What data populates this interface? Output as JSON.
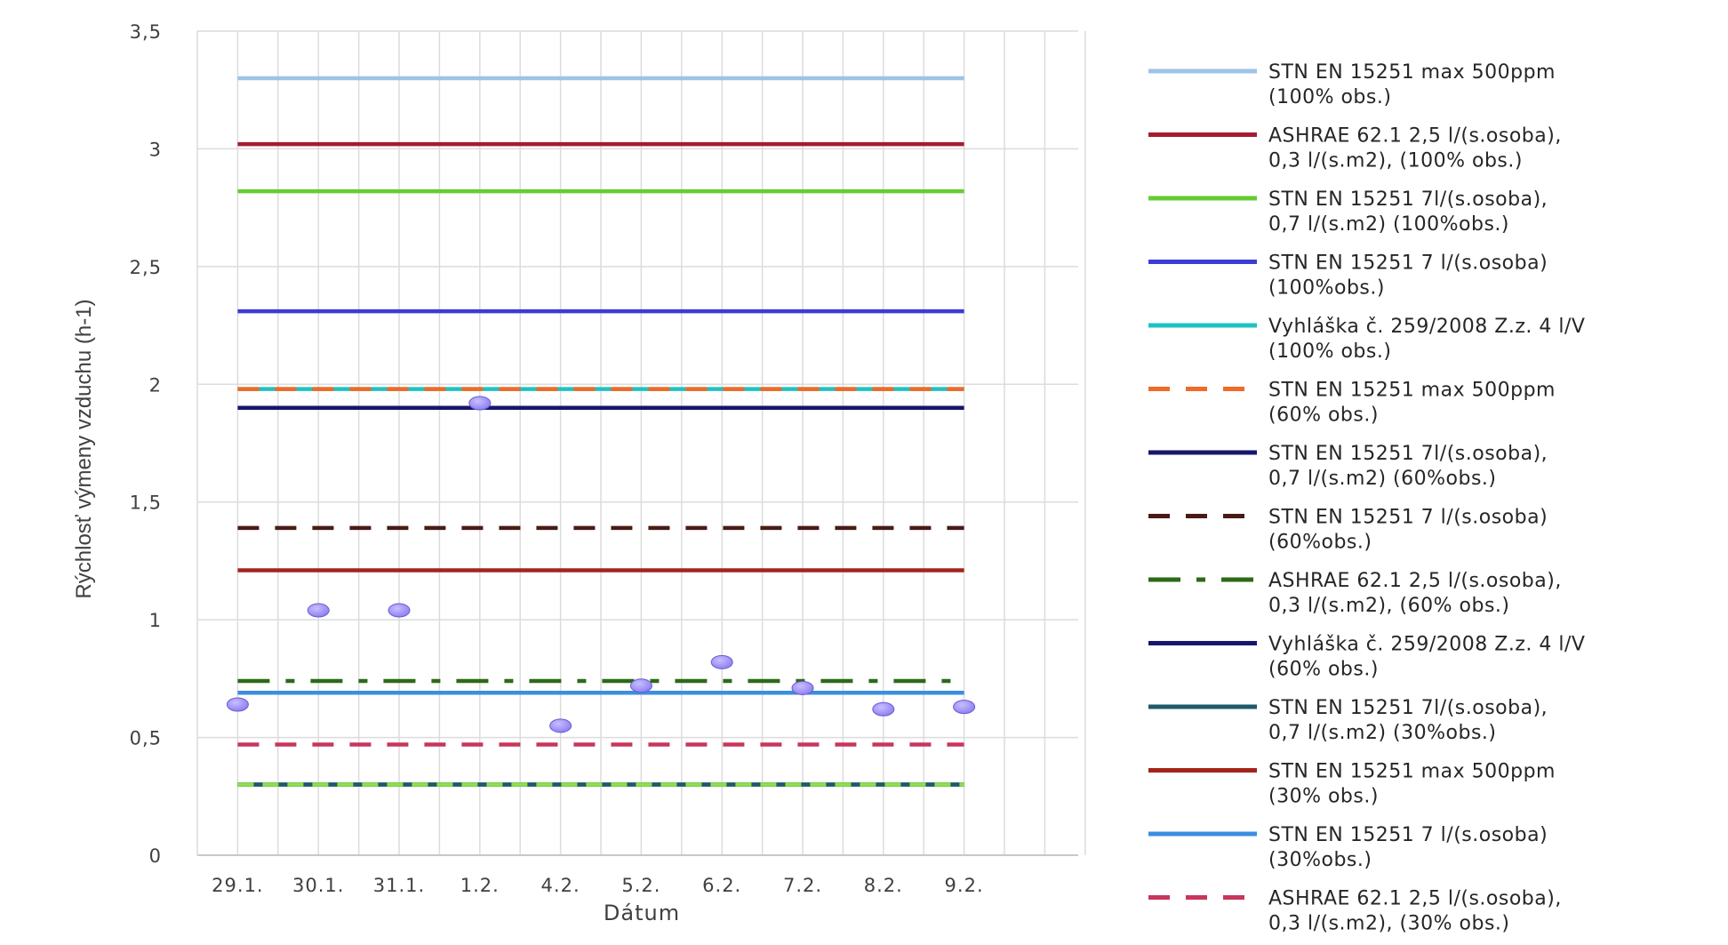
{
  "chart_data": {
    "type": "line",
    "title": "",
    "xlabel": "Dátum",
    "ylabel": "Rýchlosť výmeny vzduchu (h-1)",
    "ylim": [
      0,
      3.5
    ],
    "yticks": [
      "0",
      "0,5",
      "1",
      "1,5",
      "2",
      "2,5",
      "3",
      "3,5"
    ],
    "yticks_values": [
      0,
      0.5,
      1,
      1.5,
      2,
      2.5,
      3,
      3.5
    ],
    "categories": [
      "29.1.",
      "30.1.",
      "31.1.",
      "1.2.",
      "4.2.",
      "5.2.",
      "6.2.",
      "7.2.",
      "8.2.",
      "9.2."
    ],
    "grid": true,
    "legend_position": "right",
    "points_series": {
      "color": "#8a7cf0",
      "values": [
        0.64,
        1.04,
        1.04,
        1.92,
        0.55,
        0.72,
        0.82,
        0.71,
        0.62,
        0.63
      ]
    },
    "series": [
      {
        "name": "STN EN 15251 max 500ppm\n(100% obs.)",
        "value": 3.3,
        "color": "#9dc3e6",
        "style": "solid"
      },
      {
        "name": "ASHRAE 62.1 2,5 l/(s.osoba),\n0,3 l/(s.m2), (100% obs.)",
        "value": 3.02,
        "color": "#a51c30",
        "style": "solid"
      },
      {
        "name": "STN EN 15251 7l/(s.osoba),\n0,7 l/(s.m2) (100%obs.)",
        "value": 2.82,
        "color": "#66cc33",
        "style": "solid"
      },
      {
        "name": "STN EN 15251 7 l/(s.osoba)\n(100%obs.)",
        "value": 2.31,
        "color": "#3c3cd6",
        "style": "solid"
      },
      {
        "name": "Vyhláška č. 259/2008 Z.z. 4 l/V\n(100% obs.)",
        "value": 1.98,
        "color": "#1fc2c2",
        "style": "solid"
      },
      {
        "name": "STN EN 15251 max 500ppm\n(60% obs.)",
        "value": 1.98,
        "color": "#f06a28",
        "style": "dashed"
      },
      {
        "name": "STN EN 15251 7l/(s.osoba),\n0,7 l/(s.m2) (60%obs.)",
        "value": 1.9,
        "color": "#16166b",
        "style": "solid"
      },
      {
        "name": "STN EN 15251 7 l/(s.osoba)\n(60%obs.)",
        "value": 1.39,
        "color": "#4a1b16",
        "style": "dashed"
      },
      {
        "name": "ASHRAE 62.1 2,5 l/(s.osoba),\n0,3 l/(s.m2), (60% obs.)",
        "value": 0.74,
        "color": "#2c6a18",
        "style": "dashdot"
      },
      {
        "name": "Vyhláška č. 259/2008 Z.z. 4 l/V\n(60% obs.)",
        "value": 0.3,
        "color": "#16166b",
        "style": "solid"
      },
      {
        "name": "STN EN 15251 7l/(s.osoba),\n0,7 l/(s.m2) (30%obs.)",
        "value": 0.3,
        "color": "#1f5a68",
        "style": "solid"
      },
      {
        "name": "STN EN 15251 max 500ppm\n(30% obs.)",
        "value": 1.21,
        "color": "#a3241c",
        "style": "solid"
      },
      {
        "name": "STN EN 15251 7 l/(s.osoba)\n(30%obs.)",
        "value": 0.69,
        "color": "#3b8ee0",
        "style": "solid"
      },
      {
        "name": "ASHRAE 62.1 2,5 l/(s.osoba),\n0,3 l/(s.m2), (30% obs.)",
        "value": 0.47,
        "color": "#c8365c",
        "style": "dashed"
      }
    ],
    "overlay_line": {
      "value": 0.3,
      "color": "#8ee04a",
      "style": "dashed"
    }
  }
}
